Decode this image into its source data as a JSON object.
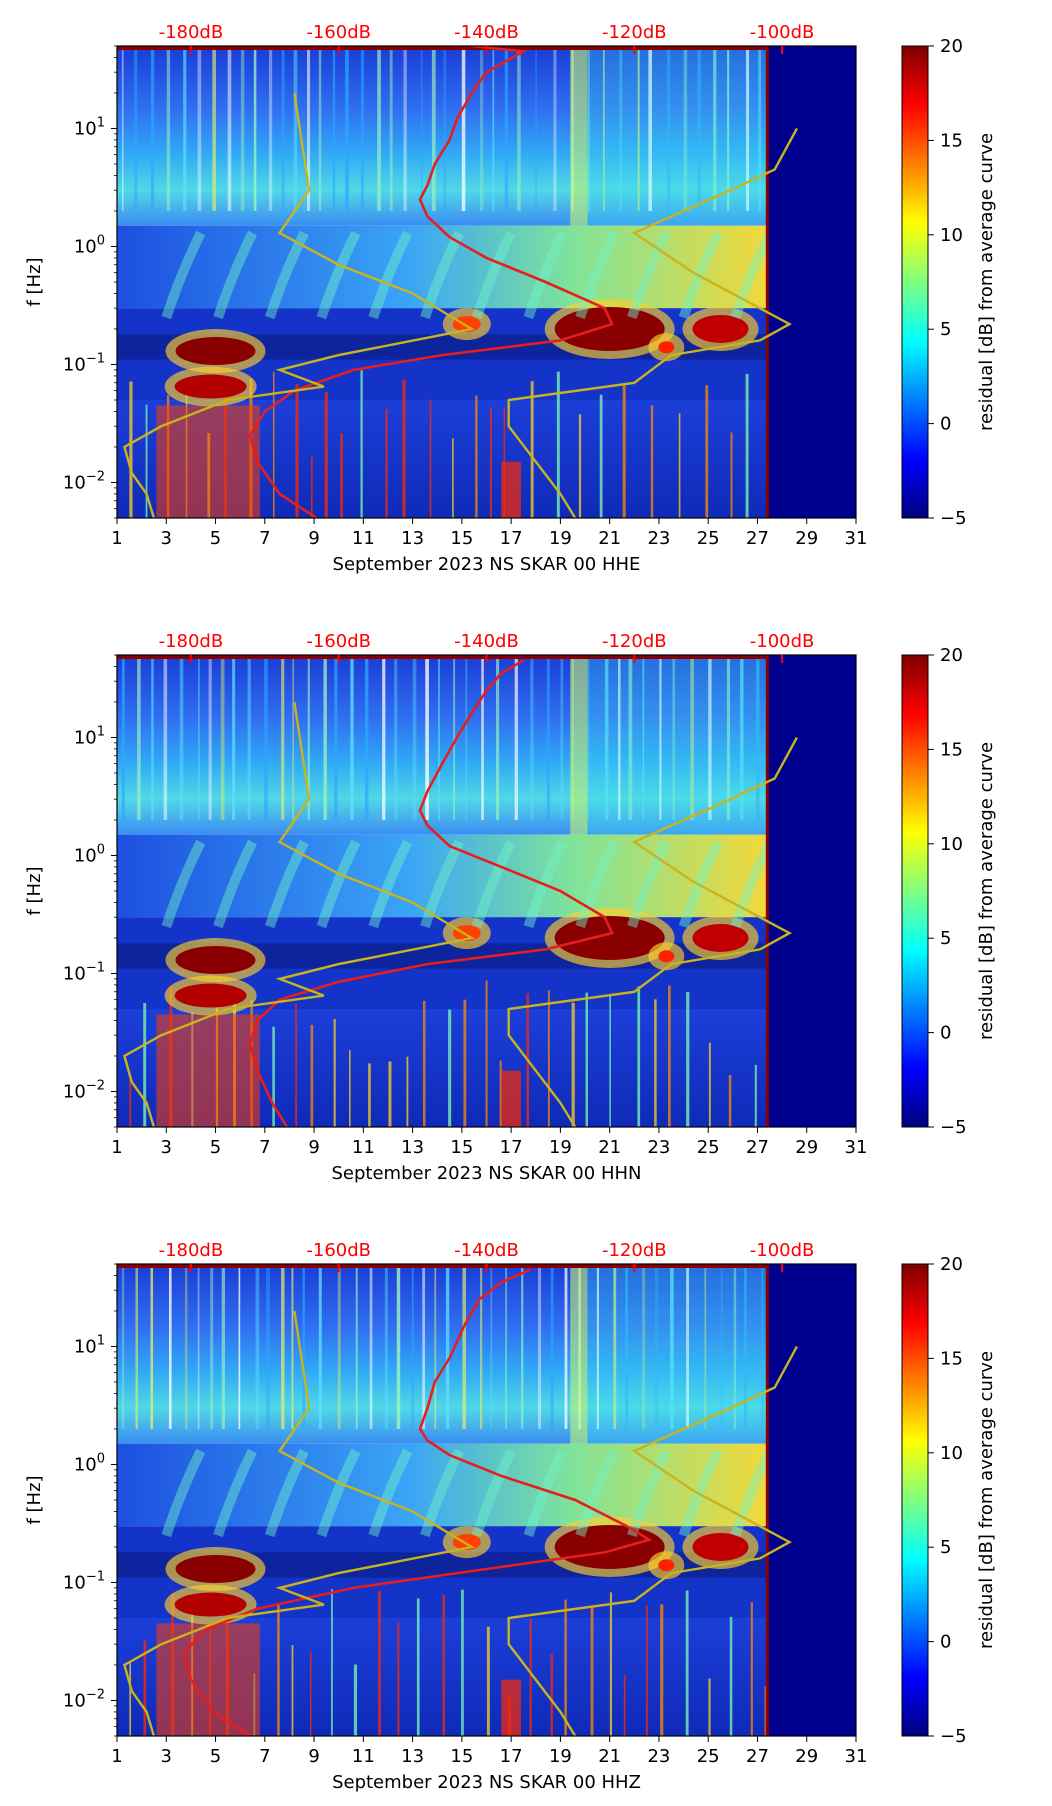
{
  "chart_data": [
    {
      "type": "heatmap",
      "subtype": "spectrogram",
      "xlabel": "September 2023 NS SKAR 00 HHE",
      "ylabel": "f [Hz]",
      "x_ticks": [
        "1",
        "3",
        "5",
        "7",
        "9",
        "11",
        "13",
        "15",
        "17",
        "19",
        "21",
        "23",
        "25",
        "27",
        "29",
        "31"
      ],
      "xlim": [
        1,
        31
      ],
      "y_scale": "log",
      "ylim": [
        0.005,
        50
      ],
      "y_ticks": [
        {
          "base": "10",
          "exp": "1"
        },
        {
          "base": "10",
          "exp": "0"
        },
        {
          "base": "10",
          "exp": "−1"
        },
        {
          "base": "10",
          "exp": "−2"
        }
      ],
      "top_axis_labels": [
        "-180dB",
        "-160dB",
        "-140dB",
        "-120dB",
        "-100dB"
      ],
      "top_axis_db": [
        -180,
        -160,
        -140,
        -120,
        -100
      ],
      "colorbar": {
        "label": "residual [dB] from average curve",
        "min": -5,
        "max": 20,
        "ticks": [
          "20",
          "15",
          "10",
          "5",
          "0",
          "−5"
        ],
        "colormap": "jet"
      },
      "data_ends_day": 27.4,
      "overlays": [
        {
          "color": "#e61e1e",
          "db_axis": "top",
          "points": [
            [
              -142,
              50
            ],
            [
              -135,
              45
            ],
            [
              -140,
              30
            ],
            [
              -142,
              20
            ],
            [
              -144,
              12
            ],
            [
              -145,
              8
            ],
            [
              -147,
              5
            ],
            [
              -148,
              3.3
            ],
            [
              -149,
              2.5
            ],
            [
              -148,
              1.8
            ],
            [
              -145,
              1.2
            ],
            [
              -140,
              0.8
            ],
            [
              -132,
              0.5
            ],
            [
              -124,
              0.3
            ],
            [
              -123,
              0.22
            ],
            [
              -130,
              0.16
            ],
            [
              -146,
              0.12
            ],
            [
              -158,
              0.09
            ],
            [
              -166,
              0.06
            ],
            [
              -170,
              0.04
            ],
            [
              -172,
              0.025
            ],
            [
              -171,
              0.015
            ],
            [
              -168,
              0.008
            ],
            [
              -163,
              0.005
            ]
          ]
        },
        {
          "color": "#c8b41e",
          "db_axis": "top",
          "points": [
            [
              -98,
              10
            ],
            [
              -101,
              4.5
            ],
            [
              -107,
              3
            ],
            [
              -120,
              1.3
            ],
            [
              -112,
              0.6
            ],
            [
              -105,
              0.35
            ],
            [
              -99,
              0.22
            ],
            [
              -103,
              0.16
            ],
            [
              -115,
              0.12
            ],
            [
              -120,
              0.07
            ],
            [
              -137,
              0.05
            ],
            [
              -137,
              0.03
            ],
            [
              -130,
              0.008
            ],
            [
              -128,
              0.005
            ]
          ]
        },
        {
          "color": "#c8b41e",
          "db_axis": "top",
          "points": [
            [
              -166,
              20
            ],
            [
              -164,
              3
            ],
            [
              -168,
              1.3
            ],
            [
              -160,
              0.7
            ],
            [
              -150,
              0.4
            ],
            [
              -142,
              0.2
            ],
            [
              -160,
              0.12
            ],
            [
              -168,
              0.09
            ],
            [
              -162,
              0.065
            ],
            [
              -175,
              0.05
            ],
            [
              -184,
              0.03
            ],
            [
              -189,
              0.02
            ],
            [
              -188,
              0.012
            ],
            [
              -186,
              0.008
            ],
            [
              -185,
              0.005
            ]
          ]
        }
      ]
    },
    {
      "type": "heatmap",
      "subtype": "spectrogram",
      "xlabel": "September 2023 NS SKAR 00 HHN",
      "ylabel": "f [Hz]",
      "x_ticks": [
        "1",
        "3",
        "5",
        "7",
        "9",
        "11",
        "13",
        "15",
        "17",
        "19",
        "21",
        "23",
        "25",
        "27",
        "29",
        "31"
      ],
      "xlim": [
        1,
        31
      ],
      "y_scale": "log",
      "ylim": [
        0.005,
        50
      ],
      "y_ticks": [
        {
          "base": "10",
          "exp": "1"
        },
        {
          "base": "10",
          "exp": "0"
        },
        {
          "base": "10",
          "exp": "−1"
        },
        {
          "base": "10",
          "exp": "−2"
        }
      ],
      "top_axis_labels": [
        "-180dB",
        "-160dB",
        "-140dB",
        "-120dB",
        "-100dB"
      ],
      "top_axis_db": [
        -180,
        -160,
        -140,
        -120,
        -100
      ],
      "colorbar": {
        "label": "residual [dB] from average curve",
        "min": -5,
        "max": 20,
        "ticks": [
          "20",
          "15",
          "10",
          "5",
          "0",
          "−5"
        ],
        "colormap": "jet"
      },
      "data_ends_day": 27.4,
      "overlays": [
        {
          "color": "#e61e1e",
          "db_axis": "top",
          "points": [
            [
              -135,
              45
            ],
            [
              -138,
              35
            ],
            [
              -140,
              25
            ],
            [
              -142,
              16
            ],
            [
              -144,
              10
            ],
            [
              -146,
              6
            ],
            [
              -148,
              3.5
            ],
            [
              -149,
              2.4
            ],
            [
              -148,
              1.8
            ],
            [
              -145,
              1.2
            ],
            [
              -138,
              0.8
            ],
            [
              -130,
              0.5
            ],
            [
              -124,
              0.3
            ],
            [
              -123,
              0.22
            ],
            [
              -132,
              0.16
            ],
            [
              -148,
              0.12
            ],
            [
              -160,
              0.085
            ],
            [
              -168,
              0.06
            ],
            [
              -171,
              0.04
            ],
            [
              -172,
              0.025
            ],
            [
              -171,
              0.015
            ],
            [
              -169,
              0.008
            ],
            [
              -167,
              0.005
            ]
          ]
        },
        {
          "color": "#c8b41e",
          "db_axis": "top",
          "points": [
            [
              -98,
              10
            ],
            [
              -101,
              4.5
            ],
            [
              -107,
              3
            ],
            [
              -120,
              1.3
            ],
            [
              -112,
              0.6
            ],
            [
              -105,
              0.35
            ],
            [
              -99,
              0.22
            ],
            [
              -103,
              0.16
            ],
            [
              -115,
              0.12
            ],
            [
              -120,
              0.07
            ],
            [
              -137,
              0.05
            ],
            [
              -137,
              0.03
            ],
            [
              -130,
              0.008
            ],
            [
              -128,
              0.005
            ]
          ]
        },
        {
          "color": "#c8b41e",
          "db_axis": "top",
          "points": [
            [
              -166,
              20
            ],
            [
              -164,
              3
            ],
            [
              -168,
              1.3
            ],
            [
              -160,
              0.7
            ],
            [
              -150,
              0.4
            ],
            [
              -142,
              0.2
            ],
            [
              -160,
              0.12
            ],
            [
              -168,
              0.09
            ],
            [
              -162,
              0.065
            ],
            [
              -175,
              0.05
            ],
            [
              -184,
              0.03
            ],
            [
              -189,
              0.02
            ],
            [
              -188,
              0.012
            ],
            [
              -186,
              0.008
            ],
            [
              -185,
              0.005
            ]
          ]
        }
      ]
    },
    {
      "type": "heatmap",
      "subtype": "spectrogram",
      "xlabel": "September 2023 NS SKAR 00 HHZ",
      "ylabel": "f [Hz]",
      "x_ticks": [
        "1",
        "3",
        "5",
        "7",
        "9",
        "11",
        "13",
        "15",
        "17",
        "19",
        "21",
        "23",
        "25",
        "27",
        "29",
        "31"
      ],
      "xlim": [
        1,
        31
      ],
      "y_scale": "log",
      "ylim": [
        0.005,
        50
      ],
      "y_ticks": [
        {
          "base": "10",
          "exp": "1"
        },
        {
          "base": "10",
          "exp": "0"
        },
        {
          "base": "10",
          "exp": "−1"
        },
        {
          "base": "10",
          "exp": "−2"
        }
      ],
      "top_axis_labels": [
        "-180dB",
        "-160dB",
        "-140dB",
        "-120dB",
        "-100dB"
      ],
      "top_axis_db": [
        -180,
        -160,
        -140,
        -120,
        -100
      ],
      "colorbar": {
        "label": "residual [dB] from average curve",
        "min": -5,
        "max": 20,
        "ticks": [
          "20",
          "15",
          "10",
          "5",
          "0",
          "−5"
        ],
        "colormap": "jet"
      },
      "data_ends_day": 27.4,
      "overlays": [
        {
          "color": "#e61e1e",
          "db_axis": "top",
          "points": [
            [
              -134,
              45
            ],
            [
              -138,
              35
            ],
            [
              -141,
              25
            ],
            [
              -143,
              15
            ],
            [
              -145,
              8
            ],
            [
              -147,
              5
            ],
            [
              -148,
              3
            ],
            [
              -149,
              2
            ],
            [
              -148,
              1.6
            ],
            [
              -145,
              1.2
            ],
            [
              -138,
              0.8
            ],
            [
              -128,
              0.5
            ],
            [
              -121,
              0.3
            ],
            [
              -118,
              0.23
            ],
            [
              -124,
              0.18
            ],
            [
              -140,
              0.13
            ],
            [
              -158,
              0.09
            ],
            [
              -171,
              0.06
            ],
            [
              -178,
              0.04
            ],
            [
              -181,
              0.025
            ],
            [
              -180,
              0.015
            ],
            [
              -177,
              0.008
            ],
            [
              -172,
              0.005
            ]
          ]
        },
        {
          "color": "#c8b41e",
          "db_axis": "top",
          "points": [
            [
              -98,
              10
            ],
            [
              -101,
              4.5
            ],
            [
              -107,
              3
            ],
            [
              -120,
              1.3
            ],
            [
              -112,
              0.6
            ],
            [
              -105,
              0.35
            ],
            [
              -99,
              0.22
            ],
            [
              -103,
              0.16
            ],
            [
              -115,
              0.12
            ],
            [
              -120,
              0.07
            ],
            [
              -137,
              0.05
            ],
            [
              -137,
              0.03
            ],
            [
              -130,
              0.008
            ],
            [
              -128,
              0.005
            ]
          ]
        },
        {
          "color": "#c8b41e",
          "db_axis": "top",
          "points": [
            [
              -166,
              20
            ],
            [
              -164,
              3
            ],
            [
              -168,
              1.3
            ],
            [
              -160,
              0.7
            ],
            [
              -150,
              0.4
            ],
            [
              -142,
              0.2
            ],
            [
              -160,
              0.12
            ],
            [
              -168,
              0.09
            ],
            [
              -162,
              0.065
            ],
            [
              -175,
              0.05
            ],
            [
              -184,
              0.03
            ],
            [
              -189,
              0.02
            ],
            [
              -188,
              0.012
            ],
            [
              -186,
              0.008
            ],
            [
              -185,
              0.005
            ]
          ]
        }
      ]
    }
  ],
  "colors": {
    "red_line": "#e61e1e",
    "yellow_line": "#c8b41e",
    "db_text": "#ff0000",
    "empty_region": "#00008f"
  }
}
